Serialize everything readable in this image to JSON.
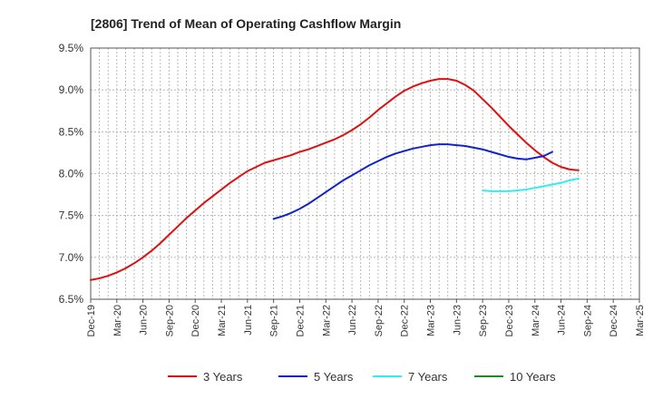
{
  "chart_data": {
    "type": "line",
    "title": "[2806]  Trend of Mean of Operating Cashflow Margin",
    "xlabel": "",
    "ylabel": "",
    "ylim": [
      6.5,
      9.5
    ],
    "yticks": [
      6.5,
      7.0,
      7.5,
      8.0,
      8.5,
      9.0,
      9.5
    ],
    "ytick_labels": [
      "6.5%",
      "7.0%",
      "7.5%",
      "8.0%",
      "8.5%",
      "9.0%",
      "9.5%"
    ],
    "x_tick_labels": [
      "Dec-19",
      "Mar-20",
      "Jun-20",
      "Sep-20",
      "Dec-20",
      "Mar-21",
      "Jun-21",
      "Sep-21",
      "Dec-21",
      "Mar-22",
      "Jun-22",
      "Sep-22",
      "Dec-22",
      "Mar-23",
      "Jun-23",
      "Sep-23",
      "Dec-23",
      "Mar-24",
      "Jun-24",
      "Sep-24",
      "Dec-24",
      "Mar-25"
    ],
    "grid": true,
    "legend_position": "bottom",
    "series": [
      {
        "name": "3 Years",
        "color": "#dd1111",
        "start_index": 0,
        "values": [
          6.73,
          6.75,
          6.78,
          6.82,
          6.87,
          6.93,
          7.0,
          7.08,
          7.17,
          7.27,
          7.37,
          7.47,
          7.56,
          7.65,
          7.73,
          7.81,
          7.89,
          7.96,
          8.03,
          8.08,
          8.13,
          8.16,
          8.19,
          8.22,
          8.26,
          8.29,
          8.33,
          8.37,
          8.41,
          8.46,
          8.52,
          8.59,
          8.67,
          8.76,
          8.84,
          8.92,
          8.99,
          9.04,
          9.08,
          9.11,
          9.13,
          9.13,
          9.11,
          9.06,
          8.99,
          8.89,
          8.79,
          8.68,
          8.57,
          8.47,
          8.37,
          8.28,
          8.2,
          8.13,
          8.08,
          8.05,
          8.04
        ]
      },
      {
        "name": "5 Years",
        "color": "#1122cc",
        "start_index": 21,
        "values": [
          7.46,
          7.49,
          7.53,
          7.58,
          7.64,
          7.71,
          7.78,
          7.85,
          7.92,
          7.98,
          8.04,
          8.1,
          8.15,
          8.2,
          8.24,
          8.27,
          8.3,
          8.32,
          8.34,
          8.35,
          8.35,
          8.34,
          8.33,
          8.31,
          8.29,
          8.26,
          8.23,
          8.2,
          8.18,
          8.17,
          8.19,
          8.21,
          8.26
        ]
      },
      {
        "name": "7 Years",
        "color": "#33eeee",
        "start_index": 45,
        "values": [
          7.8,
          7.79,
          7.79,
          7.79,
          7.8,
          7.81,
          7.83,
          7.85,
          7.87,
          7.89,
          7.92,
          7.94
        ]
      },
      {
        "name": "10 Years",
        "color": "#228822",
        "start_index": null,
        "values": []
      }
    ],
    "x_count": 64
  }
}
